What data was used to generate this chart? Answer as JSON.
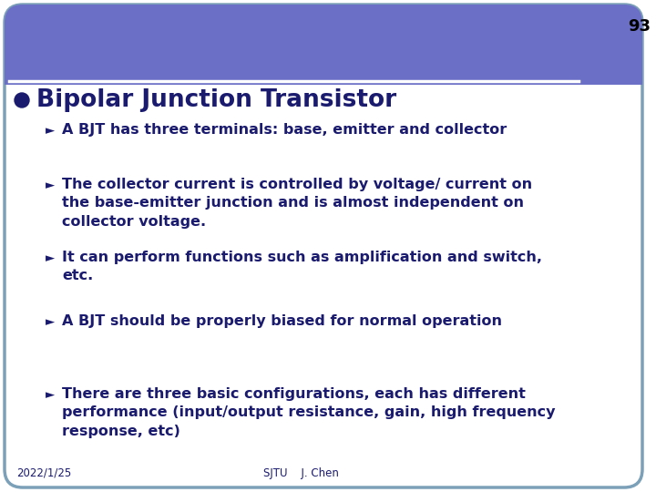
{
  "slide_number": "93",
  "title": "Bipolar Junction Transistor",
  "header_color": "#6B6FC5",
  "header_bottom_line_color": "#FFFFFF",
  "background_color": "#FFFFFF",
  "outer_bg_color": "#FFFFFF",
  "border_color": "#7BA0B8",
  "text_color": "#1A1A6E",
  "slide_num_color": "#000000",
  "bullet_items": [
    "A BJT has three terminals: base, emitter and collector",
    "The collector current is controlled by voltage/ current on\nthe base-emitter junction and is almost independent on\ncollector voltage.",
    "It can perform functions such as amplification and switch,\netc.",
    "A BJT should be properly biased for normal operation",
    "There are three basic configurations, each has different\nperformance (input/output resistance, gain, high frequency\nresponse, etc)"
  ],
  "footer_left": "2022/1/25",
  "footer_center": "SJTU    J. Chen"
}
